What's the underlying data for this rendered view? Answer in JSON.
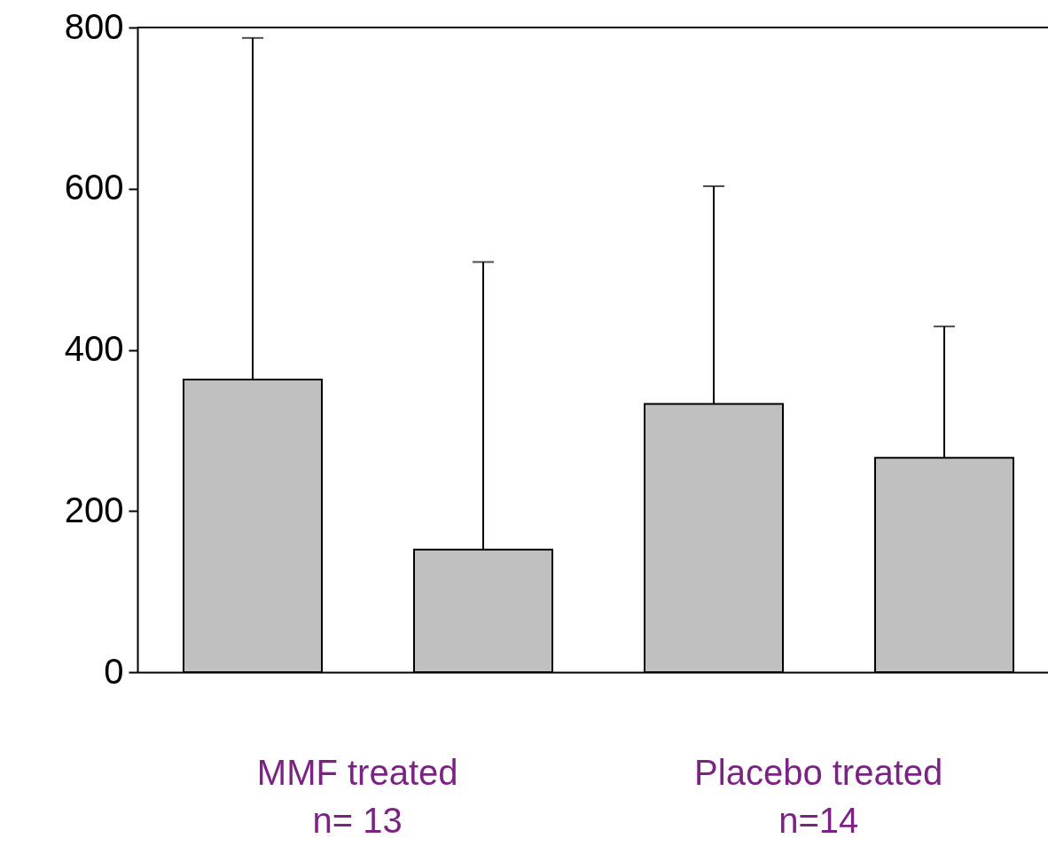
{
  "chart_data": {
    "type": "bar",
    "categories": [
      null,
      null,
      null,
      null
    ],
    "values": [
      363,
      152,
      333,
      266
    ],
    "color": "#c0c0c0",
    "errors": [
      [
        363,
        787
      ],
      [
        152,
        509
      ],
      [
        333,
        603
      ],
      [
        266,
        429
      ]
    ],
    "ylim": [
      0,
      800
    ],
    "yticks": [
      0,
      200,
      400,
      600,
      800
    ],
    "grid": false,
    "annotations": [
      "MMF treated\nn= 13",
      "Placebo treated\nn=14"
    ]
  }
}
